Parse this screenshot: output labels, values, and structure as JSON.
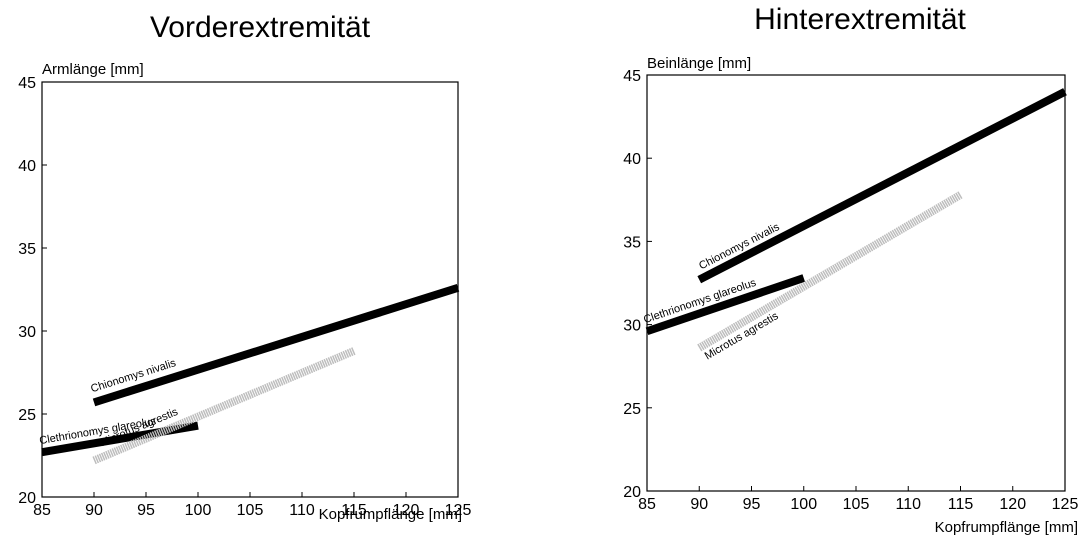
{
  "chart_data": [
    {
      "type": "line",
      "title": "Vorderextremität",
      "xlabel": "Kopfrumpflänge [mm]",
      "ylabel": "Armlänge [mm]",
      "xlim": [
        85,
        125
      ],
      "ylim": [
        20,
        45
      ],
      "xticks": [
        85,
        90,
        95,
        100,
        105,
        110,
        115,
        120,
        125
      ],
      "yticks": [
        20,
        25,
        30,
        35,
        40,
        45
      ],
      "grid": false,
      "legend": "none",
      "series": [
        {
          "name": "Chionomys nivalis",
          "x": [
            90,
            125
          ],
          "y": [
            25.7,
            32.6
          ],
          "color": "#000000",
          "width": "thick"
        },
        {
          "name": "Clethrionomys glareolus",
          "x": [
            85,
            100
          ],
          "y": [
            22.7,
            24.3
          ],
          "color": "#000000",
          "width": "thick"
        },
        {
          "name": "Microtus agrestis",
          "x": [
            90,
            115
          ],
          "y": [
            22.2,
            28.8
          ],
          "color": "#bdbdbd",
          "width": "thick"
        }
      ]
    },
    {
      "type": "line",
      "title": "Hinterextremität",
      "xlabel": "Kopfrumpflänge [mm]",
      "ylabel": "Beinlänge [mm]",
      "xlim": [
        85,
        125
      ],
      "ylim": [
        20,
        45
      ],
      "xticks": [
        85,
        90,
        95,
        100,
        105,
        110,
        115,
        120,
        125
      ],
      "yticks": [
        20,
        25,
        30,
        35,
        40,
        45
      ],
      "grid": false,
      "legend": "none",
      "series": [
        {
          "name": "Chionomys nivalis",
          "x": [
            90,
            125
          ],
          "y": [
            32.7,
            44
          ],
          "color": "#000000",
          "width": "thick"
        },
        {
          "name": "Clethrionomys glareolus",
          "x": [
            85,
            100
          ],
          "y": [
            29.6,
            32.8
          ],
          "color": "#000000",
          "width": "thick"
        },
        {
          "name": "Microtus agrestis",
          "x": [
            90,
            115
          ],
          "y": [
            28.6,
            37.8
          ],
          "color": "#bdbdbd",
          "width": "thick"
        }
      ]
    }
  ]
}
